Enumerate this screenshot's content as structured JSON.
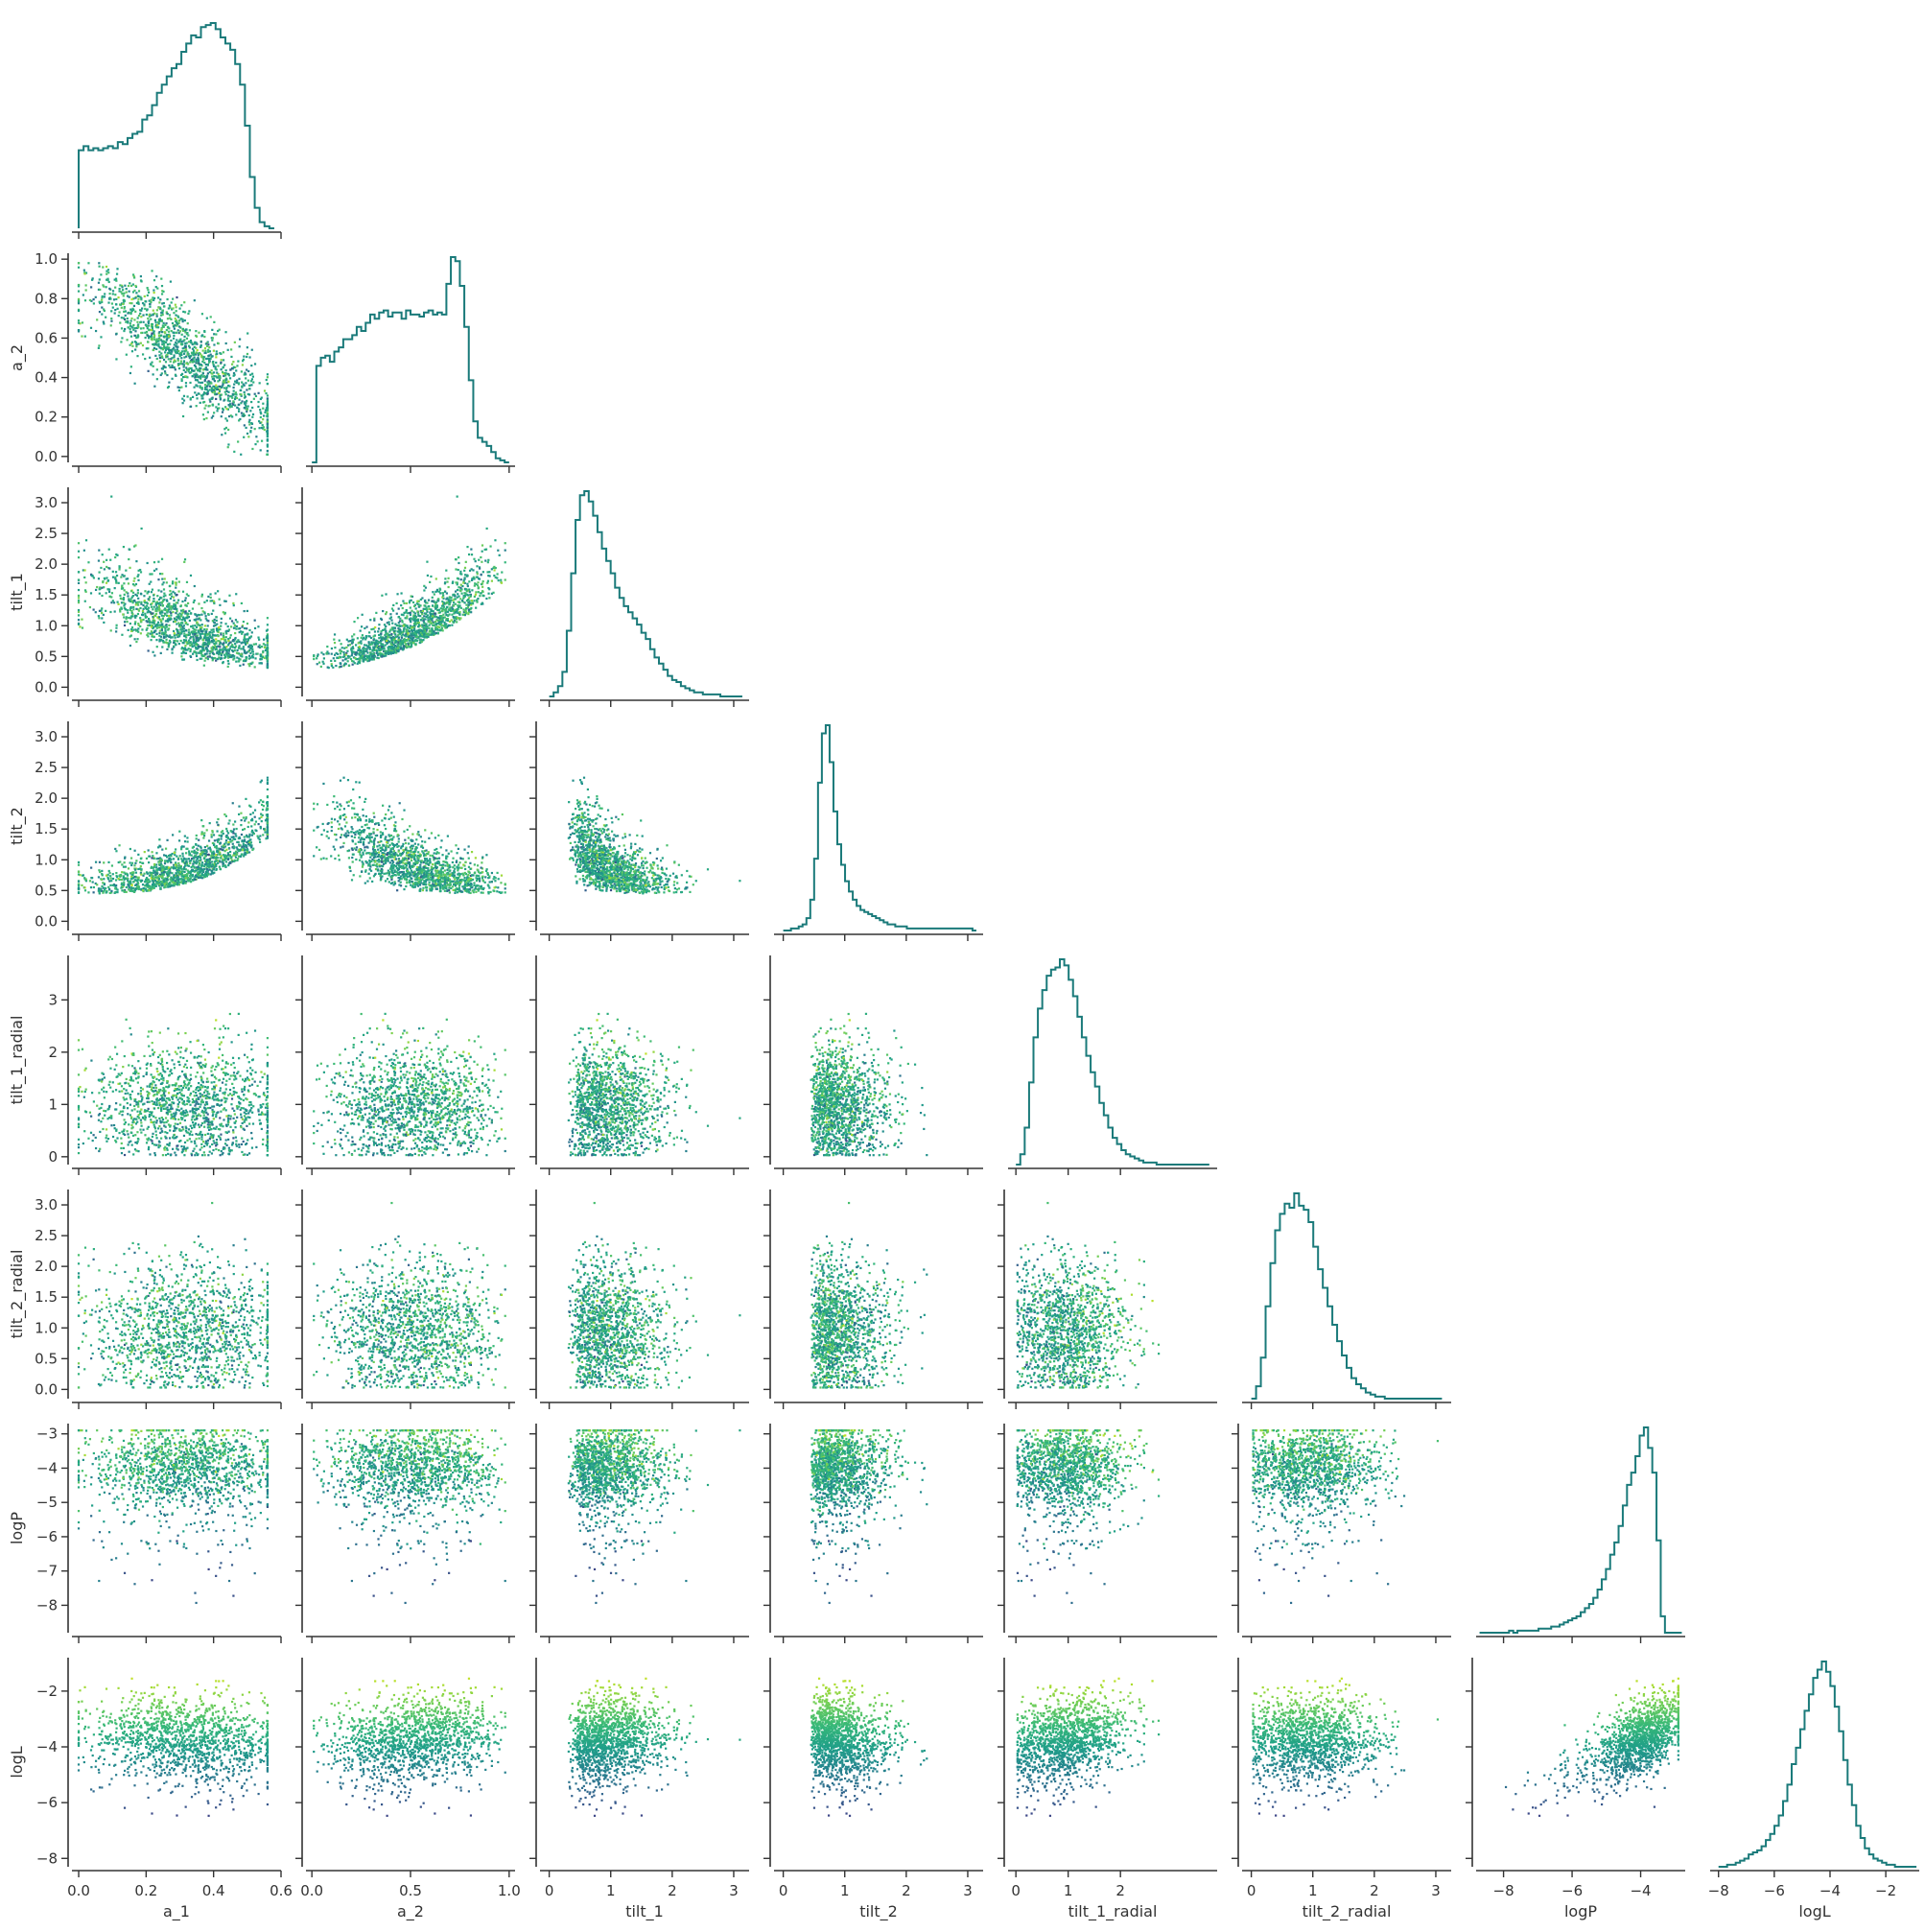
{
  "chart_data": {
    "type": "corner",
    "description_source": "pairwise scatter matrix (lower triangle) with 1-D step histograms on diagonal, points colored by logL (viridis)",
    "variables": [
      "a_1",
      "a_2",
      "tilt_1",
      "tilt_2",
      "tilt_1_radial",
      "tilt_2_radial",
      "logP",
      "logL"
    ],
    "axis_ranges": {
      "a_1": [
        -0.02,
        0.6
      ],
      "a_2": [
        -0.03,
        1.03
      ],
      "tilt_1": [
        -0.15,
        3.25
      ],
      "tilt_2": [
        -0.15,
        3.25
      ],
      "tilt_1_radial": [
        -0.15,
        3.85
      ],
      "tilt_2_radial": [
        -0.15,
        3.25
      ],
      "logP": [
        -8.8,
        -2.7
      ],
      "logL": [
        -8.3,
        -0.8
      ]
    },
    "ticks": {
      "a_1": [
        0.0,
        0.2,
        0.4,
        0.6
      ],
      "a_2": [
        0.0,
        0.5,
        1.0
      ],
      "tilt_1": [
        0,
        1,
        2,
        3
      ],
      "tilt_2": [
        0,
        1,
        2,
        3
      ],
      "tilt_1_radial": [
        0,
        1,
        2
      ],
      "tilt_2_radial": [
        0,
        1,
        2,
        3
      ],
      "logP": [
        -8,
        -6,
        -4
      ],
      "logL": [
        -8,
        -6,
        -4,
        -2
      ]
    },
    "y_ticks": {
      "a_2": [
        0.0,
        0.2,
        0.4,
        0.6,
        0.8,
        1.0
      ],
      "tilt_1": [
        0.0,
        0.5,
        1.0,
        1.5,
        2.0,
        2.5,
        3.0
      ],
      "tilt_2": [
        0.0,
        0.5,
        1.0,
        1.5,
        2.0,
        2.5,
        3.0
      ],
      "tilt_1_radial": [
        0,
        1,
        2,
        3
      ],
      "tilt_2_radial": [
        0.0,
        0.5,
        1.0,
        1.5,
        2.0,
        2.5,
        3.0
      ],
      "logP": [
        -8,
        -7,
        -6,
        -5,
        -4,
        -3
      ],
      "logL": [
        -8,
        -6,
        -4,
        -2
      ]
    },
    "tick_labels": {
      "a_1": [
        "0.0",
        "0.2",
        "0.4",
        "0.6"
      ],
      "a_2": [
        "0.0",
        "0.5",
        "1.0"
      ],
      "tilt_1": [
        "0",
        "1",
        "2",
        "3"
      ],
      "tilt_2": [
        "0",
        "1",
        "2",
        "3"
      ],
      "tilt_1_radial": [
        "0",
        "1",
        "2"
      ],
      "tilt_2_radial": [
        "0",
        "1",
        "2",
        "3"
      ],
      "logP": [
        "−8",
        "−6",
        "−4"
      ],
      "logL": [
        "−8",
        "−6",
        "−4",
        "−2"
      ]
    },
    "y_tick_labels": {
      "a_2": [
        "0.0",
        "0.2",
        "0.4",
        "0.6",
        "0.8",
        "1.0"
      ],
      "tilt_1": [
        "0.0",
        "0.5",
        "1.0",
        "1.5",
        "2.0",
        "2.5",
        "3.0"
      ],
      "tilt_2": [
        "0.0",
        "0.5",
        "1.0",
        "1.5",
        "2.0",
        "2.5",
        "3.0"
      ],
      "tilt_1_radial": [
        "0",
        "1",
        "2",
        "3"
      ],
      "tilt_2_radial": [
        "0.0",
        "0.5",
        "1.0",
        "1.5",
        "2.0",
        "2.5",
        "3.0"
      ],
      "logP": [
        "−8",
        "−7",
        "−6",
        "−5",
        "−4",
        "−3"
      ],
      "logL": [
        "−8",
        "−6",
        "−4",
        "−2"
      ]
    },
    "histograms": {
      "a_1": {
        "bin_edges_range": [
          0.0,
          0.58
        ],
        "bins": 40,
        "heights": [
          0.38,
          0.4,
          0.38,
          0.39,
          0.38,
          0.39,
          0.4,
          0.39,
          0.42,
          0.41,
          0.44,
          0.46,
          0.47,
          0.53,
          0.55,
          0.6,
          0.66,
          0.7,
          0.74,
          0.78,
          0.8,
          0.86,
          0.9,
          0.94,
          0.93,
          0.98,
          0.99,
          1.0,
          0.97,
          0.93,
          0.9,
          0.87,
          0.8,
          0.7,
          0.5,
          0.25,
          0.1,
          0.03,
          0.01,
          0.0
        ]
      },
      "a_2": {
        "bin_edges_range": [
          0.0,
          1.0
        ],
        "bins": 44,
        "heights": [
          0.0,
          0.47,
          0.51,
          0.52,
          0.49,
          0.54,
          0.56,
          0.6,
          0.6,
          0.62,
          0.66,
          0.64,
          0.68,
          0.72,
          0.7,
          0.73,
          0.74,
          0.71,
          0.73,
          0.73,
          0.7,
          0.74,
          0.72,
          0.72,
          0.71,
          0.73,
          0.74,
          0.72,
          0.73,
          0.72,
          0.87,
          1.0,
          0.98,
          0.86,
          0.66,
          0.4,
          0.2,
          0.12,
          0.1,
          0.08,
          0.05,
          0.02,
          0.01,
          0.0
        ]
      },
      "tilt_1": {
        "bin_edges_range": [
          0.0,
          3.14
        ],
        "bins": 44,
        "heights": [
          0.0,
          0.02,
          0.05,
          0.12,
          0.32,
          0.6,
          0.86,
          0.98,
          1.0,
          0.95,
          0.88,
          0.8,
          0.72,
          0.66,
          0.6,
          0.53,
          0.48,
          0.44,
          0.41,
          0.38,
          0.35,
          0.31,
          0.28,
          0.23,
          0.19,
          0.16,
          0.13,
          0.1,
          0.08,
          0.07,
          0.05,
          0.04,
          0.03,
          0.02,
          0.02,
          0.01,
          0.01,
          0.01,
          0.01,
          0.0,
          0.0,
          0.0,
          0.0,
          0.0
        ]
      },
      "tilt_2": {
        "bin_edges_range": [
          0.0,
          3.14
        ],
        "bins": 50,
        "heights": [
          0.0,
          0.0,
          0.01,
          0.01,
          0.02,
          0.03,
          0.06,
          0.15,
          0.35,
          0.72,
          0.96,
          1.0,
          0.82,
          0.58,
          0.42,
          0.32,
          0.24,
          0.19,
          0.15,
          0.12,
          0.1,
          0.09,
          0.08,
          0.07,
          0.06,
          0.05,
          0.04,
          0.03,
          0.03,
          0.02,
          0.02,
          0.02,
          0.01,
          0.01,
          0.01,
          0.01,
          0.01,
          0.01,
          0.01,
          0.01,
          0.01,
          0.01,
          0.01,
          0.01,
          0.01,
          0.01,
          0.01,
          0.01,
          0.01,
          0.0
        ]
      },
      "tilt_1_radial": {
        "bin_edges_range": [
          0.0,
          3.7
        ],
        "bins": 44,
        "heights": [
          0.0,
          0.05,
          0.18,
          0.4,
          0.62,
          0.76,
          0.85,
          0.92,
          0.95,
          0.96,
          1.0,
          0.97,
          0.9,
          0.82,
          0.72,
          0.62,
          0.53,
          0.45,
          0.38,
          0.3,
          0.24,
          0.18,
          0.13,
          0.1,
          0.07,
          0.05,
          0.04,
          0.03,
          0.02,
          0.01,
          0.01,
          0.01,
          0.0,
          0.0,
          0.0,
          0.0,
          0.0,
          0.0,
          0.0,
          0.0,
          0.0,
          0.0,
          0.0,
          0.0
        ]
      },
      "tilt_2_radial": {
        "bin_edges_range": [
          0.0,
          3.1
        ],
        "bins": 40,
        "heights": [
          0.0,
          0.06,
          0.2,
          0.45,
          0.66,
          0.82,
          0.9,
          0.95,
          0.93,
          1.0,
          0.94,
          0.92,
          0.86,
          0.74,
          0.63,
          0.54,
          0.45,
          0.36,
          0.28,
          0.21,
          0.15,
          0.1,
          0.07,
          0.05,
          0.03,
          0.02,
          0.01,
          0.01,
          0.0,
          0.0,
          0.0,
          0.0,
          0.0,
          0.0,
          0.0,
          0.0,
          0.0,
          0.0,
          0.0,
          0.0
        ]
      },
      "logP": {
        "bin_edges_range": [
          -8.7,
          -2.8
        ],
        "bins": 48,
        "heights": [
          0.0,
          0.0,
          0.0,
          0.0,
          0.0,
          0.0,
          0.0,
          0.01,
          0.0,
          0.01,
          0.01,
          0.01,
          0.01,
          0.01,
          0.02,
          0.02,
          0.02,
          0.03,
          0.03,
          0.04,
          0.05,
          0.06,
          0.07,
          0.08,
          0.1,
          0.12,
          0.14,
          0.17,
          0.21,
          0.26,
          0.31,
          0.38,
          0.44,
          0.52,
          0.62,
          0.72,
          0.78,
          0.86,
          0.96,
          1.0,
          0.9,
          0.78,
          0.45,
          0.08,
          0.0,
          0.0,
          0.0,
          0.0
        ]
      },
      "logL": {
        "bin_edges_range": [
          -8.0,
          -0.9
        ],
        "bins": 46,
        "heights": [
          0.0,
          0.0,
          0.01,
          0.01,
          0.02,
          0.03,
          0.04,
          0.06,
          0.07,
          0.08,
          0.1,
          0.13,
          0.16,
          0.2,
          0.25,
          0.32,
          0.4,
          0.5,
          0.58,
          0.67,
          0.76,
          0.84,
          0.92,
          0.96,
          1.0,
          0.95,
          0.88,
          0.78,
          0.66,
          0.52,
          0.4,
          0.3,
          0.2,
          0.14,
          0.09,
          0.06,
          0.04,
          0.03,
          0.02,
          0.01,
          0.01,
          0.0,
          0.0,
          0.0,
          0.0,
          0.0
        ]
      }
    },
    "colormap": "viridis",
    "color_variable": "logL",
    "color_range": [
      -8.0,
      -0.9
    ],
    "points_per_panel": 1400,
    "hist_color": "#1a7a7a",
    "grid": false,
    "legend": "none",
    "title": "",
    "spine_color": "#333333",
    "background": "#ffffff"
  }
}
